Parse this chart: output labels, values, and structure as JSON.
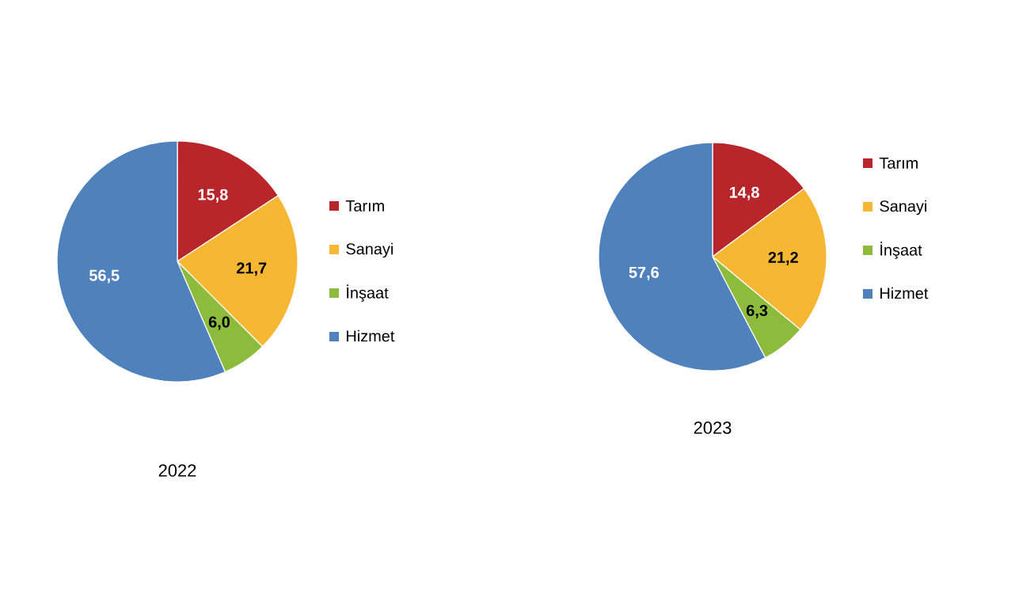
{
  "chart_data": [
    {
      "type": "pie",
      "title": "2022",
      "categories": [
        "Tarım",
        "Sanayi",
        "İnşaat",
        "Hizmet"
      ],
      "values": [
        15.8,
        21.7,
        6.0,
        56.5
      ],
      "value_labels": [
        "15,8",
        "21,7",
        "6,0",
        "56,5"
      ],
      "colors": [
        "#b8252b",
        "#f7b733",
        "#8dbb3c",
        "#4f81bd"
      ],
      "legend": "right"
    },
    {
      "type": "pie",
      "title": "2023",
      "categories": [
        "Tarım",
        "Sanayi",
        "İnşaat",
        "Hizmet"
      ],
      "values": [
        14.8,
        21.2,
        6.3,
        57.6
      ],
      "value_labels": [
        "14,8",
        "21,2",
        "6,3",
        "57,6"
      ],
      "colors": [
        "#b8252b",
        "#f7b733",
        "#8dbb3c",
        "#4f81bd"
      ],
      "legend": "right"
    }
  ]
}
